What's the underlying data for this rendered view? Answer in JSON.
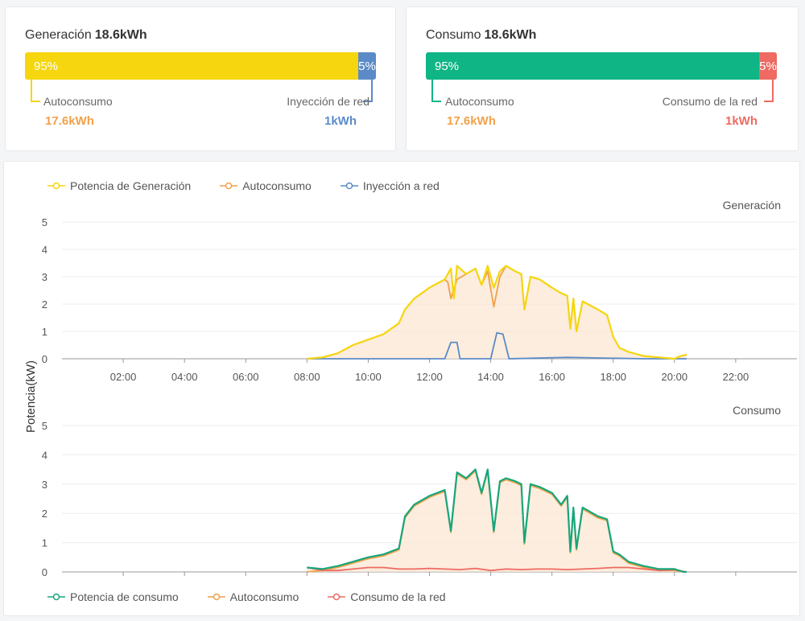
{
  "generacion": {
    "title": "Generación",
    "total": "18.6kWh",
    "left_pct": "95%",
    "right_pct": "5%",
    "left_fraction": 0.95,
    "left_label": "Autoconsumo",
    "left_value": "17.6kWh",
    "right_label": "Inyección de red",
    "right_value": "1kWh",
    "colors": {
      "left": "#f5d60f",
      "right": "#5b8bc7",
      "left_value": "#f0a14a",
      "right_value": "#5b8bc7",
      "bracket_left": "#f5d60f",
      "bracket_right": "#5b8bc7"
    }
  },
  "consumo": {
    "title": "Consumo",
    "total": "18.6kWh",
    "left_pct": "95%",
    "right_pct": "5%",
    "left_fraction": 0.95,
    "left_label": "Autoconsumo",
    "left_value": "17.6kWh",
    "right_label": "Consumo de la red",
    "right_value": "1kWh",
    "colors": {
      "left": "#10b585",
      "right": "#ee6a62",
      "left_value": "#f0a14a",
      "right_value": "#ee6a62",
      "bracket_left": "#10b585",
      "bracket_right": "#ee6a62"
    }
  },
  "legend_top": [
    {
      "label": "Potencia de Generación",
      "color": "#f5d60f"
    },
    {
      "label": "Autoconsumo",
      "color": "#f0a14a"
    },
    {
      "label": "Inyección a red",
      "color": "#5b8bc7"
    }
  ],
  "legend_bottom": [
    {
      "label": "Potencia de consumo",
      "color": "#17a67a"
    },
    {
      "label": "Autoconsumo",
      "color": "#f0a14a"
    },
    {
      "label": "Consumo de la red",
      "color": "#ee6a62"
    }
  ],
  "chart_data": [
    {
      "type": "area",
      "title": "Generación",
      "ylabel": "Potencia(kW)",
      "ylim": [
        0,
        5
      ],
      "yticks": [
        "0",
        "1",
        "2",
        "3",
        "4",
        "5"
      ],
      "xlim": [
        0,
        24
      ],
      "xticks": [
        "02:00",
        "04:00",
        "06:00",
        "08:00",
        "10:00",
        "12:00",
        "14:00",
        "16:00",
        "18:00",
        "20:00",
        "22:00"
      ],
      "grid": true,
      "series": [
        {
          "name": "Potencia de Generación",
          "color": "#f5d60f",
          "x": [
            8.0,
            8.5,
            9.0,
            9.5,
            10.0,
            10.5,
            11.0,
            11.2,
            11.5,
            12.0,
            12.5,
            12.7,
            12.8,
            12.9,
            13.2,
            13.5,
            13.7,
            13.9,
            14.1,
            14.3,
            14.5,
            14.8,
            15.0,
            15.1,
            15.3,
            15.6,
            16.0,
            16.3,
            16.5,
            16.6,
            16.7,
            16.8,
            17.0,
            17.5,
            17.8,
            18.0,
            18.2,
            18.5,
            19.0,
            19.5,
            20.0,
            20.2,
            20.4
          ],
          "y": [
            0.0,
            0.05,
            0.2,
            0.5,
            0.7,
            0.9,
            1.3,
            1.8,
            2.2,
            2.6,
            2.9,
            3.3,
            2.2,
            3.4,
            3.1,
            3.3,
            2.7,
            3.4,
            2.6,
            3.2,
            3.4,
            3.2,
            3.1,
            1.8,
            3.0,
            2.9,
            2.6,
            2.4,
            2.3,
            1.1,
            2.2,
            1.0,
            2.1,
            1.8,
            1.6,
            0.8,
            0.4,
            0.25,
            0.1,
            0.05,
            0.0,
            0.1,
            0.15
          ]
        },
        {
          "name": "Autoconsumo",
          "color": "#f0a14a",
          "x": [
            8.0,
            8.5,
            9.0,
            9.5,
            10.0,
            10.5,
            11.0,
            11.2,
            11.5,
            12.0,
            12.5,
            12.6,
            12.7,
            12.9,
            13.2,
            13.5,
            13.7,
            13.9,
            14.1,
            14.3,
            14.5,
            14.8,
            15.0,
            15.1,
            15.3,
            15.6,
            16.0,
            16.3,
            16.5,
            16.6,
            16.7,
            16.8,
            17.0,
            17.5,
            17.8,
            18.0,
            18.2,
            18.5,
            19.0,
            19.5,
            20.0,
            20.2,
            20.4
          ],
          "y": [
            0.0,
            0.05,
            0.2,
            0.5,
            0.7,
            0.9,
            1.3,
            1.8,
            2.2,
            2.6,
            2.9,
            2.8,
            2.2,
            2.9,
            3.1,
            3.3,
            2.7,
            3.2,
            1.9,
            3.0,
            3.4,
            3.2,
            3.1,
            1.8,
            3.0,
            2.9,
            2.6,
            2.4,
            2.3,
            1.1,
            2.2,
            1.0,
            2.1,
            1.8,
            1.6,
            0.8,
            0.4,
            0.25,
            0.1,
            0.05,
            0.0,
            0.1,
            0.15
          ]
        },
        {
          "name": "Inyección a red",
          "color": "#5b8bc7",
          "x": [
            8.0,
            12.5,
            12.7,
            12.9,
            13.0,
            13.2,
            14.0,
            14.2,
            14.4,
            14.6,
            16.5,
            19.0,
            20.4
          ],
          "y": [
            0,
            0,
            0.6,
            0.6,
            0,
            0,
            0,
            0.95,
            0.9,
            0,
            0.05,
            0,
            0
          ]
        }
      ]
    },
    {
      "type": "area",
      "title": "Consumo",
      "ylabel": "Potencia(kW)",
      "ylim": [
        0,
        5
      ],
      "yticks": [
        "0",
        "1",
        "2",
        "3",
        "4",
        "5"
      ],
      "xlim": [
        0,
        24
      ],
      "grid": true,
      "series": [
        {
          "name": "Potencia de consumo",
          "color": "#17a67a",
          "x": [
            8.0,
            8.5,
            9.0,
            9.5,
            10.0,
            10.5,
            11.0,
            11.2,
            11.5,
            12.0,
            12.5,
            12.7,
            12.9,
            13.2,
            13.5,
            13.7,
            13.9,
            14.1,
            14.3,
            14.5,
            14.8,
            15.0,
            15.1,
            15.3,
            15.6,
            16.0,
            16.3,
            16.5,
            16.6,
            16.7,
            16.8,
            17.0,
            17.5,
            17.8,
            18.0,
            18.2,
            18.5,
            19.0,
            19.5,
            20.0,
            20.3,
            20.4
          ],
          "y": [
            0.15,
            0.1,
            0.2,
            0.35,
            0.5,
            0.6,
            0.8,
            1.9,
            2.3,
            2.6,
            2.8,
            1.4,
            3.4,
            3.2,
            3.5,
            2.7,
            3.5,
            1.4,
            3.1,
            3.2,
            3.1,
            3.0,
            1.0,
            3.0,
            2.9,
            2.7,
            2.3,
            2.6,
            0.7,
            2.2,
            0.8,
            2.2,
            1.9,
            1.8,
            0.7,
            0.6,
            0.35,
            0.2,
            0.1,
            0.1,
            0.0,
            0.0
          ]
        },
        {
          "name": "Autoconsumo",
          "color": "#f0a14a",
          "x": [
            8.0,
            8.5,
            9.0,
            9.5,
            10.0,
            10.5,
            11.0,
            11.2,
            11.5,
            12.0,
            12.5,
            12.7,
            12.9,
            13.2,
            13.5,
            13.7,
            13.9,
            14.1,
            14.3,
            14.5,
            14.8,
            15.0,
            15.1,
            15.3,
            15.6,
            16.0,
            16.3,
            16.5,
            16.6,
            16.7,
            16.8,
            17.0,
            17.5,
            17.8,
            18.0,
            18.2,
            18.5,
            19.0,
            19.5,
            20.0,
            20.3,
            20.4
          ],
          "y": [
            0.0,
            0.05,
            0.15,
            0.3,
            0.45,
            0.55,
            0.75,
            1.85,
            2.25,
            2.55,
            2.75,
            1.35,
            3.35,
            3.15,
            3.45,
            2.65,
            3.45,
            1.35,
            3.05,
            3.15,
            3.05,
            2.95,
            0.95,
            2.95,
            2.85,
            2.65,
            2.25,
            2.55,
            0.65,
            2.15,
            0.75,
            2.15,
            1.85,
            1.75,
            0.65,
            0.55,
            0.3,
            0.15,
            0.05,
            0.05,
            0.0,
            0.0
          ]
        },
        {
          "name": "Consumo de la red",
          "color": "#ee6a62",
          "x": [
            8.0,
            8.5,
            9.0,
            9.5,
            10.0,
            10.5,
            11.0,
            11.5,
            12.0,
            12.5,
            13.0,
            13.5,
            14.0,
            14.5,
            15.0,
            15.5,
            16.0,
            16.5,
            17.0,
            17.5,
            18.0,
            18.5,
            19.0,
            19.5,
            20.0,
            20.4
          ],
          "y": [
            0.15,
            0.05,
            0.05,
            0.1,
            0.15,
            0.15,
            0.1,
            0.1,
            0.12,
            0.1,
            0.08,
            0.12,
            0.05,
            0.1,
            0.08,
            0.1,
            0.1,
            0.08,
            0.1,
            0.12,
            0.15,
            0.15,
            0.1,
            0.05,
            0.08,
            0.0
          ]
        }
      ]
    }
  ]
}
